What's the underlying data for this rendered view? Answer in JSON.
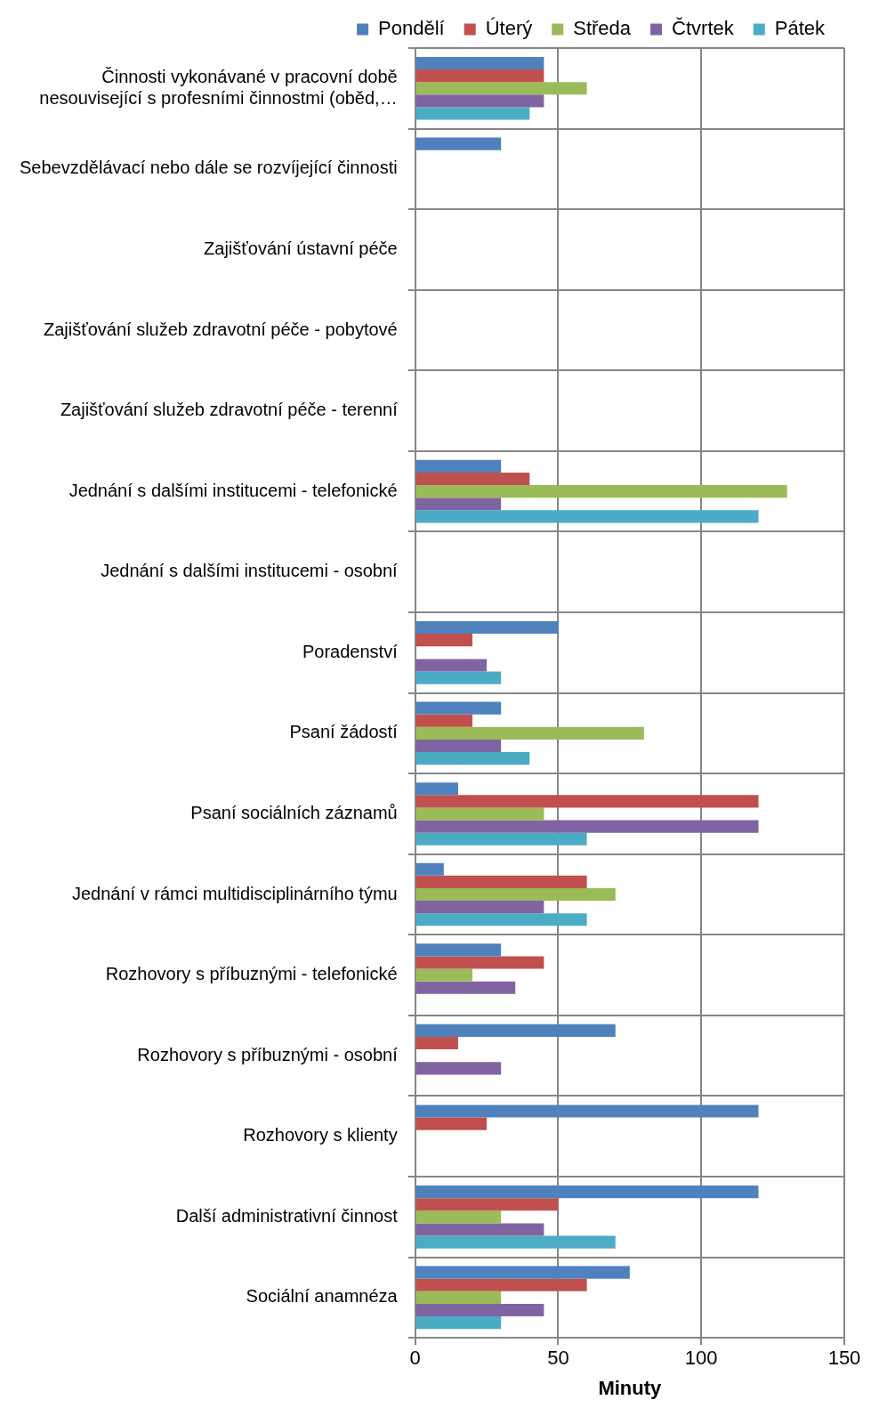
{
  "chart_data": {
    "type": "bar",
    "orientation": "horizontal",
    "xlabel": "Minuty",
    "categories": [
      "Činnosti vykonávané v pracovní době nesouvisející s profesními činnostmi (oběd,…",
      "Sebevzdělávací nebo dále se rozvíjející činnosti",
      "Zajišťování ústavní péče",
      "Zajišťování služeb zdravotní péče - pobytové",
      "Zajišťování služeb zdravotní péče - terenní",
      "Jednání s dalšími institucemi - telefonické",
      "Jednání s dalšími institucemi - osobní",
      "Poradenství",
      "Psaní žádostí",
      "Psaní sociálních záznamů",
      "Jednání v rámci multidisciplinárního týmu",
      "Rozhovory s příbuznými - telefonické",
      "Rozhovory s příbuznými - osobní",
      "Rozhovory s klienty",
      "Další administrativní činnost",
      "Sociální anamnéza"
    ],
    "series": [
      {
        "name": "Pondělí",
        "color": "#4f81bd",
        "values": [
          45,
          30,
          0,
          0,
          0,
          30,
          0,
          50,
          30,
          15,
          10,
          30,
          70,
          120,
          120,
          75
        ]
      },
      {
        "name": "Úterý",
        "color": "#c0504d",
        "values": [
          45,
          0,
          0,
          0,
          0,
          40,
          0,
          20,
          20,
          120,
          60,
          45,
          15,
          25,
          50,
          60
        ]
      },
      {
        "name": "Středa",
        "color": "#9bbb59",
        "values": [
          60,
          0,
          0,
          0,
          0,
          130,
          0,
          0,
          80,
          45,
          70,
          20,
          0,
          0,
          30,
          30
        ]
      },
      {
        "name": "Čtvrtek",
        "color": "#8064a2",
        "values": [
          45,
          0,
          0,
          0,
          0,
          30,
          0,
          25,
          30,
          120,
          45,
          35,
          30,
          0,
          45,
          45
        ]
      },
      {
        "name": "Pátek",
        "color": "#4bacc6",
        "values": [
          40,
          0,
          0,
          0,
          0,
          120,
          0,
          30,
          40,
          60,
          60,
          0,
          0,
          0,
          70,
          30
        ]
      }
    ],
    "xlim": [
      0,
      150
    ],
    "xticks": [
      0,
      50,
      100,
      150
    ],
    "grid": true,
    "legend": "top"
  }
}
